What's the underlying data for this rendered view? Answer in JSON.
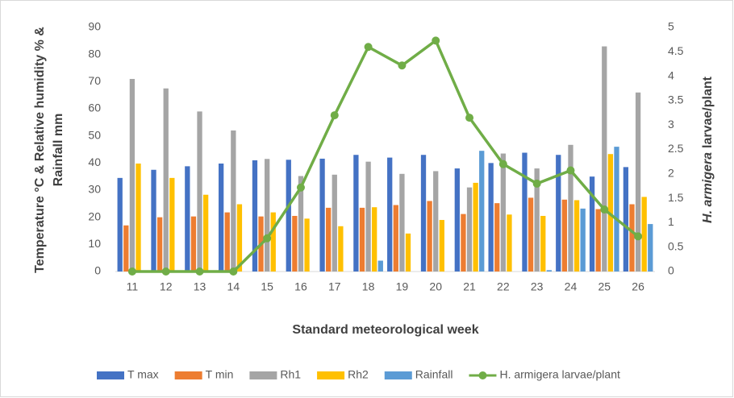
{
  "chart_data": {
    "type": "bar-line",
    "xlabel": "Standard meteorological week",
    "ylabel": [
      "Temperature °C & Relative humidity % &",
      "Rainfall mm"
    ],
    "y2label": {
      "italic": "H. armigera",
      "rest": "larvae/plant"
    },
    "categories": [
      "11",
      "12",
      "13",
      "14",
      "15",
      "16",
      "17",
      "18",
      "19",
      "20",
      "21",
      "22",
      "23",
      "24",
      "25",
      "26"
    ],
    "ylim": [
      0,
      90
    ],
    "yticks": [
      0,
      10,
      20,
      30,
      40,
      50,
      60,
      70,
      80,
      90
    ],
    "y2lim": [
      0,
      5
    ],
    "y2ticks": [
      0,
      0.5,
      1,
      1.5,
      2,
      2.5,
      3,
      3.5,
      4,
      4.5,
      5
    ],
    "grid": false,
    "legend": "bottom",
    "series": [
      {
        "name": "T max",
        "type": "bar",
        "color": "#4472c4",
        "values": [
          34.5,
          37.5,
          38.8,
          39.8,
          41,
          41.2,
          41.6,
          43,
          42,
          43,
          38,
          40,
          43.8,
          43,
          35,
          38.5
        ]
      },
      {
        "name": "T min",
        "type": "bar",
        "color": "#ed7d31",
        "values": [
          17,
          20,
          20.3,
          21.8,
          20.3,
          20.5,
          23.5,
          23.5,
          24.5,
          26,
          21.2,
          25.2,
          27.2,
          26.5,
          23,
          24.8
        ]
      },
      {
        "name": "Rh1",
        "type": "bar",
        "color": "#a5a5a5",
        "values": [
          71,
          67.5,
          59,
          52,
          41.5,
          35.2,
          35.7,
          40.5,
          36,
          37,
          31,
          43.5,
          38,
          46.7,
          83,
          66
        ]
      },
      {
        "name": "Rh2",
        "type": "bar",
        "color": "#ffc000",
        "values": [
          39.8,
          34.5,
          28.3,
          24.8,
          21.8,
          19.5,
          16.7,
          23.7,
          14,
          19,
          32.7,
          21,
          20.5,
          26.3,
          43.3,
          27.5
        ]
      },
      {
        "name": "Rainfall",
        "type": "bar",
        "color": "#5b9bd5",
        "values": [
          0,
          0,
          0,
          0,
          0,
          0,
          0,
          4,
          0,
          0,
          44.5,
          0,
          0.5,
          23.2,
          46,
          17.5
        ]
      },
      {
        "name": "H. armigera larvae/plant",
        "type": "line",
        "axis": "y2",
        "color": "#70ad47",
        "values": [
          0,
          0,
          0,
          0,
          0.68,
          1.72,
          3.2,
          4.6,
          4.22,
          4.73,
          3.15,
          2.2,
          1.8,
          2.07,
          1.27,
          0.72
        ]
      }
    ]
  }
}
